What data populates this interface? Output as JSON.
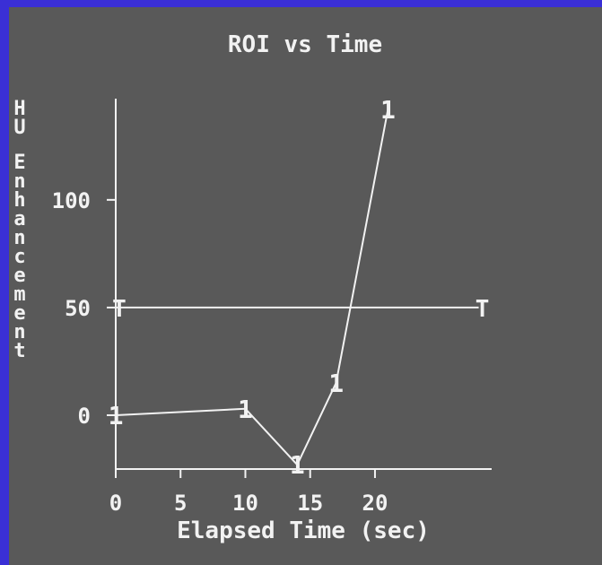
{
  "chart_data": {
    "type": "line",
    "title": "ROI vs Time",
    "xlabel": "Elapsed Time (sec)",
    "ylabel": "HU Enhancement",
    "x_ticks": [
      0,
      5,
      10,
      15,
      20
    ],
    "y_ticks": [
      0,
      50,
      100
    ],
    "xlim": [
      0,
      29
    ],
    "ylim": [
      -25,
      147
    ],
    "grid": false,
    "series": [
      {
        "marker": "1",
        "x": [
          0,
          10,
          14,
          17,
          21
        ],
        "y": [
          0,
          3,
          -23,
          15,
          142
        ]
      }
    ],
    "threshold": {
      "marker": "T",
      "y": 50,
      "x": [
        0,
        28
      ]
    }
  },
  "colors": {
    "background": "#595959",
    "border": "#3a2fd6",
    "ink": "#f2f2f2"
  }
}
